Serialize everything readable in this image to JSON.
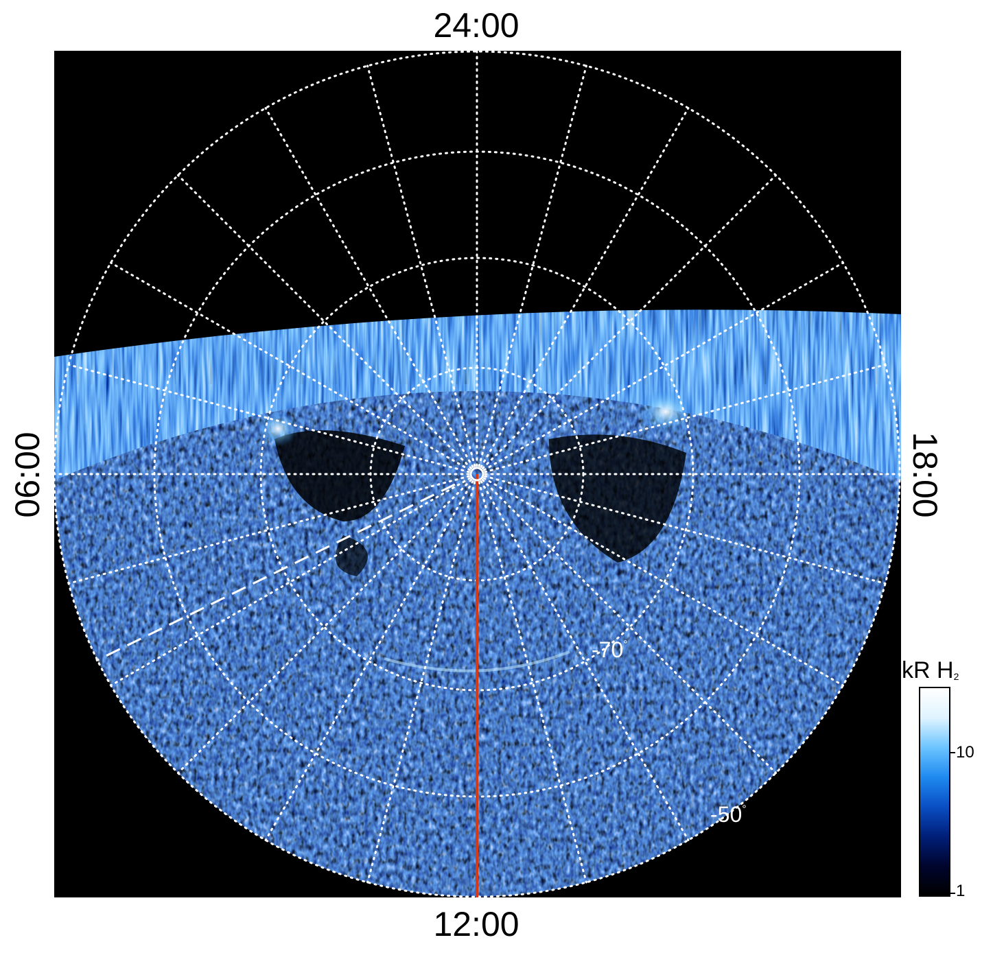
{
  "image": {
    "kind": "polar auroral emission map",
    "background": "#000000",
    "palette": [
      "#000000",
      "#00052e",
      "#001f7a",
      "#0a4fc4",
      "#1f8af0",
      "#6cc4ff",
      "#dff4ff"
    ],
    "meridian_line_color": "#d83a16",
    "grid_line_color": "#ffffff"
  },
  "local_time_labels": {
    "top": "24:00",
    "bottom": "12:00",
    "left": "06:00",
    "right": "18:00"
  },
  "latitude_labels": {
    "inner": "-70",
    "outer": "-50",
    "degree_symbol": "°"
  },
  "colorbar": {
    "title": "kR H",
    "title_subscript": "2",
    "tick_10": "10",
    "tick_1": "1",
    "colors": [
      "#000000",
      "#00052e",
      "#001f7a",
      "#0a4fc4",
      "#1f8af0",
      "#6cc4ff",
      "#dff4ff",
      "#ffffff"
    ]
  }
}
